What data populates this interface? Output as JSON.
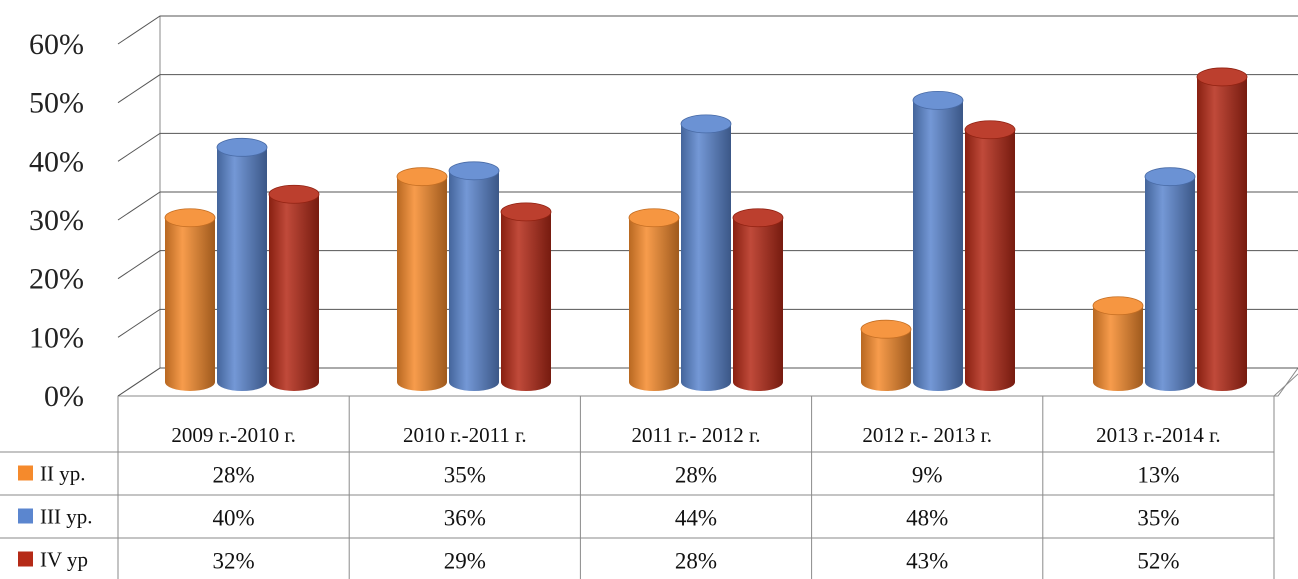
{
  "chart_data": {
    "type": "bar",
    "style": "3d-cylinder",
    "categories": [
      "2009 г.-2010 г.",
      "2010 г.-2011 г.",
      "2011 г.- 2012 г.",
      "2012 г.- 2013 г.",
      "2013 г.-2014 г."
    ],
    "series": [
      {
        "name": "II ур.",
        "color": "#f58a2c",
        "values": [
          28,
          35,
          28,
          9,
          13
        ],
        "labels": [
          "28%",
          "35%",
          "28%",
          "9%",
          "13%"
        ]
      },
      {
        "name": "III ур.",
        "color": "#5b86cf",
        "values": [
          40,
          36,
          44,
          48,
          35
        ],
        "labels": [
          "40%",
          "36%",
          "44%",
          "48%",
          "35%"
        ]
      },
      {
        "name": "IV ур",
        "color": "#b52a17",
        "values": [
          32,
          29,
          28,
          43,
          52
        ],
        "labels": [
          "32%",
          "29%",
          "28%",
          "43%",
          "52%"
        ]
      }
    ],
    "y_ticks": [
      "0%",
      "10%",
      "20%",
      "30%",
      "40%",
      "50%",
      "60%"
    ],
    "ylim": [
      0,
      60
    ],
    "grid": true,
    "data_table": true,
    "legend_in_table": true
  }
}
